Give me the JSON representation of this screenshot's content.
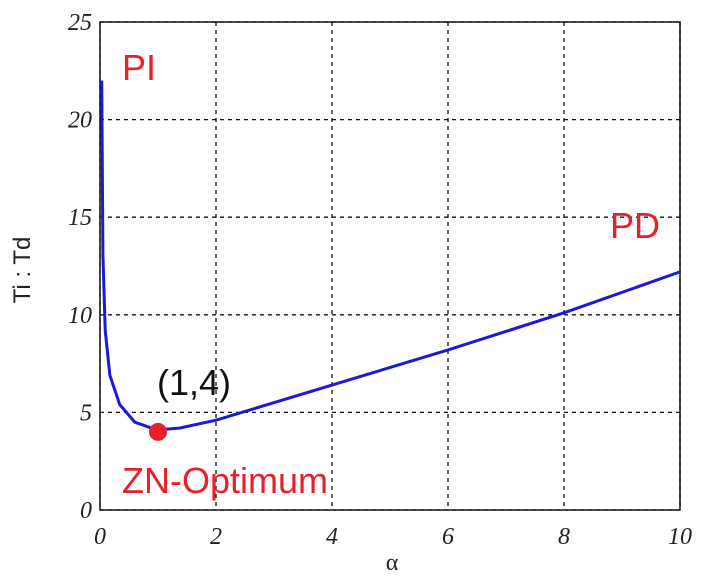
{
  "chart_data": {
    "type": "line",
    "x_label": "α",
    "y_label": "Ti : Td",
    "series": [
      {
        "name": "Ti : Td",
        "color": "#1a1adc",
        "x": [
          0.03,
          0.05,
          0.09,
          0.17,
          0.34,
          0.6,
          0.98,
          1.38,
          2,
          4,
          6,
          8,
          10
        ],
        "values": [
          22,
          13.1,
          9.2,
          6.9,
          5.4,
          4.5,
          4.1,
          4.2,
          4.6,
          6.4,
          8.2,
          10.1,
          12.2
        ]
      }
    ],
    "highlight": {
      "x": 1,
      "y": 4,
      "color": "#e8202a"
    },
    "annotations": [
      "PI",
      "PD",
      "(1,4)",
      "ZN-Optimum"
    ],
    "annotation_colors": [
      "#e8202a",
      "#e8202a",
      "#111111",
      "#e8202a"
    ],
    "xlim": [
      0,
      10
    ],
    "xticks": [
      0,
      2,
      4,
      6,
      8,
      10
    ],
    "ylim": [
      0,
      25
    ],
    "yticks": [
      0,
      5,
      10,
      15,
      20,
      25
    ],
    "grid": true
  }
}
